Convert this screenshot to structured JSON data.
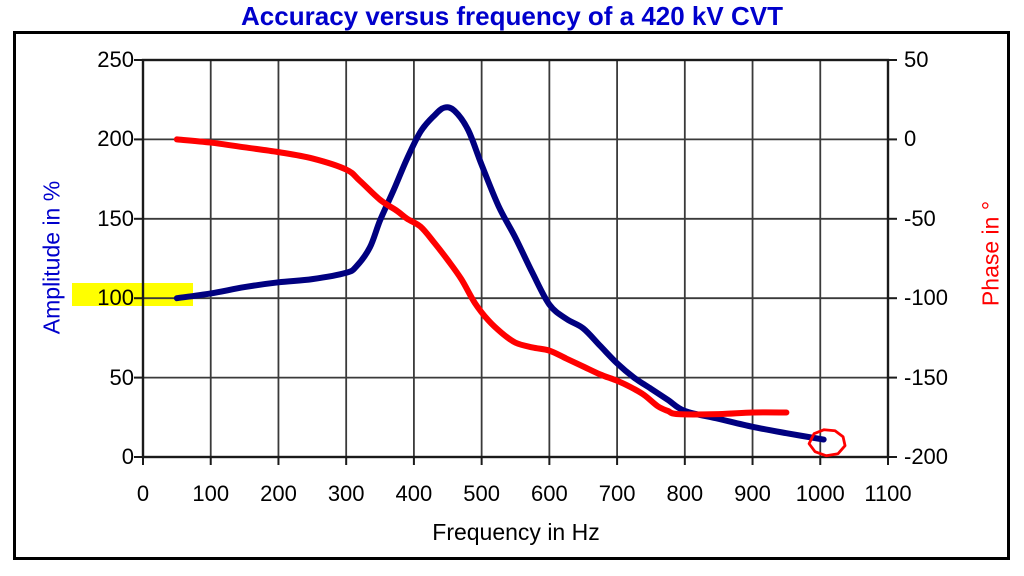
{
  "title": "Accuracy versus frequency of a 420 kV CVT",
  "chart_data": {
    "type": "line",
    "title": "Accuracy versus frequency of a 420 kV CVT",
    "xlabel": "Frequency in Hz",
    "ylabel_left": "Amplitude in %",
    "ylabel_right": "Phase in °",
    "x_range": [
      0,
      1100
    ],
    "ylim_left": [
      0,
      250
    ],
    "ylim_right": [
      -200,
      50
    ],
    "x_ticks": [
      "0",
      "100",
      "200",
      "300",
      "400",
      "500",
      "600",
      "700",
      "800",
      "900",
      "1000",
      "1100"
    ],
    "left_ticks": [
      "250",
      "200",
      "150",
      "100",
      "50",
      "0"
    ],
    "right_ticks": [
      "50",
      "0",
      "-50",
      "-100",
      "-150",
      "-200"
    ],
    "grid": "on",
    "legend": "none",
    "series": [
      {
        "name": "Amplitude in %",
        "axis": "left",
        "color": "#000080",
        "points": [
          [
            50,
            100
          ],
          [
            100,
            103
          ],
          [
            150,
            107
          ],
          [
            200,
            110
          ],
          [
            250,
            112
          ],
          [
            300,
            116
          ],
          [
            315,
            120
          ],
          [
            335,
            132
          ],
          [
            350,
            149
          ],
          [
            370,
            168
          ],
          [
            390,
            188
          ],
          [
            410,
            205
          ],
          [
            430,
            215
          ],
          [
            445,
            220
          ],
          [
            460,
            218
          ],
          [
            480,
            206
          ],
          [
            500,
            184
          ],
          [
            525,
            158
          ],
          [
            550,
            138
          ],
          [
            575,
            116
          ],
          [
            600,
            96
          ],
          [
            625,
            87
          ],
          [
            650,
            81
          ],
          [
            675,
            70
          ],
          [
            700,
            59
          ],
          [
            725,
            50
          ],
          [
            750,
            43
          ],
          [
            775,
            36
          ],
          [
            800,
            29
          ],
          [
            850,
            24
          ],
          [
            900,
            19
          ],
          [
            950,
            15
          ],
          [
            1005,
            11
          ]
        ]
      },
      {
        "name": "Phase in °",
        "axis": "right",
        "color": "#FF0000",
        "points": [
          [
            50,
            0
          ],
          [
            100,
            -2
          ],
          [
            150,
            -5
          ],
          [
            200,
            -8
          ],
          [
            250,
            -12
          ],
          [
            300,
            -19
          ],
          [
            320,
            -26
          ],
          [
            350,
            -38
          ],
          [
            375,
            -45
          ],
          [
            390,
            -50
          ],
          [
            410,
            -55
          ],
          [
            430,
            -65
          ],
          [
            450,
            -76
          ],
          [
            470,
            -88
          ],
          [
            490,
            -103
          ],
          [
            510,
            -114
          ],
          [
            530,
            -122
          ],
          [
            550,
            -128
          ],
          [
            575,
            -131
          ],
          [
            600,
            -133
          ],
          [
            625,
            -138
          ],
          [
            650,
            -143
          ],
          [
            675,
            -148
          ],
          [
            700,
            -152
          ],
          [
            720,
            -156
          ],
          [
            740,
            -161
          ],
          [
            760,
            -168
          ],
          [
            775,
            -171
          ],
          [
            790,
            -173
          ],
          [
            850,
            -173
          ],
          [
            900,
            -172
          ],
          [
            950,
            -172
          ]
        ]
      }
    ],
    "annotations": [
      {
        "type": "highlight",
        "target_tick": "100",
        "axis": "left",
        "color": "#FFFF00"
      },
      {
        "type": "hand_drawn_circle",
        "x": 1010,
        "y_right": -191,
        "color": "#FF0000",
        "note": "circles the end of the amplitude curve"
      }
    ]
  },
  "colors": {
    "title": "#0000CC",
    "left_axis_label": "#0000CC",
    "right_axis_label": "#FF0000",
    "tick_labels": "#000000",
    "grid": "#3A3A3A",
    "frame": "#000000",
    "plot_border": "#1A1A1A",
    "background": "#FFFFFF"
  }
}
